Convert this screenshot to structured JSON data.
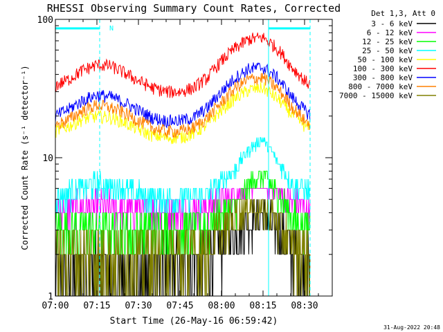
{
  "chart_data": {
    "type": "line",
    "title": "RHESSI Observing Summary Count Rates, Corrected",
    "xlabel": "Start Time (26-May-16 06:59:42)",
    "ylabel": "Corrected Count Rate (s⁻¹ detector⁻¹)",
    "x_ticks": [
      "07:00",
      "07:15",
      "07:30",
      "07:45",
      "08:00",
      "08:15",
      "08:30"
    ],
    "x_range_min": [
      0,
      100
    ],
    "y_scale": "log",
    "ylim": [
      1,
      100
    ],
    "y_ticks": [
      "1",
      "10",
      "100"
    ],
    "legend_title": "Det 1,3, Att 0",
    "legend_position": "right",
    "flag_label": "N",
    "footer_date": "31-Aug-2022 20:48",
    "flag_bars": [
      [
        0,
        16
      ],
      [
        77,
        92
      ]
    ],
    "flag_lines": [
      0,
      16,
      77,
      92
    ],
    "series": [
      {
        "name": "3 - 6 keV",
        "color": "#000000",
        "kind": "discrete",
        "levels": [
          1,
          2,
          3,
          4,
          5
        ],
        "x": [
          0,
          10,
          20,
          30,
          45,
          50,
          55,
          60,
          65,
          70,
          75,
          80,
          85,
          90,
          92
        ],
        "y": [
          1.5,
          1.5,
          1.4,
          1.4,
          1.5,
          1.7,
          2.0,
          2.5,
          3.0,
          3.5,
          3.8,
          3.2,
          2.2,
          1.6,
          1.5
        ]
      },
      {
        "name": "6 - 12 keV",
        "color": "#ff00ff",
        "kind": "discrete",
        "levels": [
          3,
          4,
          5,
          6
        ],
        "x": [
          0,
          10,
          20,
          30,
          45,
          55,
          65,
          70,
          75,
          80,
          85,
          92
        ],
        "y": [
          4.2,
          4.5,
          4.4,
          4.3,
          4.2,
          4.4,
          5.5,
          6.5,
          6.8,
          5.8,
          4.6,
          4.4
        ]
      },
      {
        "name": "12 - 25 keV",
        "color": "#00ff00",
        "kind": "discrete",
        "levels": [
          2,
          3,
          4,
          5,
          6,
          7,
          8
        ],
        "x": [
          0,
          10,
          20,
          30,
          45,
          55,
          65,
          70,
          75,
          80,
          85,
          92
        ],
        "y": [
          3.0,
          3.1,
          3.0,
          3.0,
          3.0,
          3.2,
          4.5,
          6.5,
          7.5,
          5.5,
          3.8,
          3.2
        ]
      },
      {
        "name": "25 - 50 keV",
        "color": "#00ffff",
        "kind": "discrete",
        "levels": [
          4,
          5,
          6,
          7,
          8,
          9,
          10,
          11,
          12,
          13,
          14
        ],
        "x": [
          0,
          10,
          15,
          20,
          30,
          45,
          55,
          65,
          70,
          75,
          80,
          85,
          92
        ],
        "y": [
          5.2,
          6.0,
          6.5,
          6.2,
          5.4,
          5.0,
          5.4,
          8.0,
          11.5,
          13.5,
          9.5,
          6.5,
          5.5
        ]
      },
      {
        "name": "50 - 100 keV",
        "color": "#ffff00",
        "kind": "continuous",
        "x": [
          0,
          5,
          10,
          15,
          20,
          25,
          30,
          35,
          40,
          45,
          50,
          55,
          60,
          65,
          70,
          75,
          80,
          85,
          90,
          92
        ],
        "y": [
          15.5,
          17.0,
          19.0,
          20.0,
          19.5,
          18.0,
          16.0,
          14.5,
          14.0,
          14.0,
          15.0,
          17.5,
          22.0,
          27.0,
          31.0,
          32.0,
          27.0,
          21.0,
          17.0,
          16.5
        ]
      },
      {
        "name": "100 - 300 keV",
        "color": "#ff0000",
        "kind": "continuous",
        "x": [
          0,
          5,
          10,
          15,
          20,
          25,
          30,
          35,
          40,
          45,
          50,
          55,
          60,
          65,
          70,
          75,
          80,
          85,
          90,
          92
        ],
        "y": [
          33.0,
          37.0,
          43.0,
          47.0,
          46.0,
          41.0,
          36.0,
          32.0,
          30.0,
          30.0,
          32.0,
          38.0,
          50.0,
          62.0,
          72.0,
          74.0,
          62.0,
          46.0,
          36.0,
          34.0
        ]
      },
      {
        "name": "300 - 800 keV",
        "color": "#0000ff",
        "kind": "continuous",
        "x": [
          0,
          5,
          10,
          15,
          20,
          25,
          30,
          35,
          40,
          45,
          50,
          55,
          60,
          65,
          70,
          75,
          80,
          85,
          90,
          92
        ],
        "y": [
          20.0,
          22.5,
          26.0,
          28.5,
          27.5,
          25.0,
          22.0,
          19.5,
          18.5,
          18.5,
          19.5,
          23.0,
          30.0,
          38.0,
          44.0,
          45.0,
          38.0,
          28.0,
          22.0,
          20.5
        ]
      },
      {
        "name": "800 - 7000 keV",
        "color": "#ff8000",
        "kind": "continuous",
        "x": [
          0,
          5,
          10,
          15,
          20,
          25,
          30,
          35,
          40,
          45,
          50,
          55,
          60,
          65,
          70,
          75,
          80,
          85,
          90,
          92
        ],
        "y": [
          17.0,
          19.0,
          22.0,
          24.0,
          23.0,
          21.0,
          18.5,
          16.5,
          15.5,
          15.5,
          16.5,
          19.5,
          25.0,
          32.0,
          37.0,
          38.0,
          32.0,
          24.0,
          18.5,
          17.5
        ]
      },
      {
        "name": "7000 - 15000 keV",
        "color": "#808000",
        "kind": "discrete",
        "levels": [
          1,
          2,
          3,
          4,
          5
        ],
        "x": [
          0,
          10,
          20,
          30,
          45,
          50,
          55,
          60,
          65,
          70,
          75,
          80,
          85,
          92
        ],
        "y": [
          2.0,
          2.1,
          2.0,
          2.0,
          2.0,
          2.1,
          2.3,
          2.8,
          3.8,
          4.5,
          4.3,
          3.4,
          2.4,
          2.1
        ]
      }
    ]
  }
}
